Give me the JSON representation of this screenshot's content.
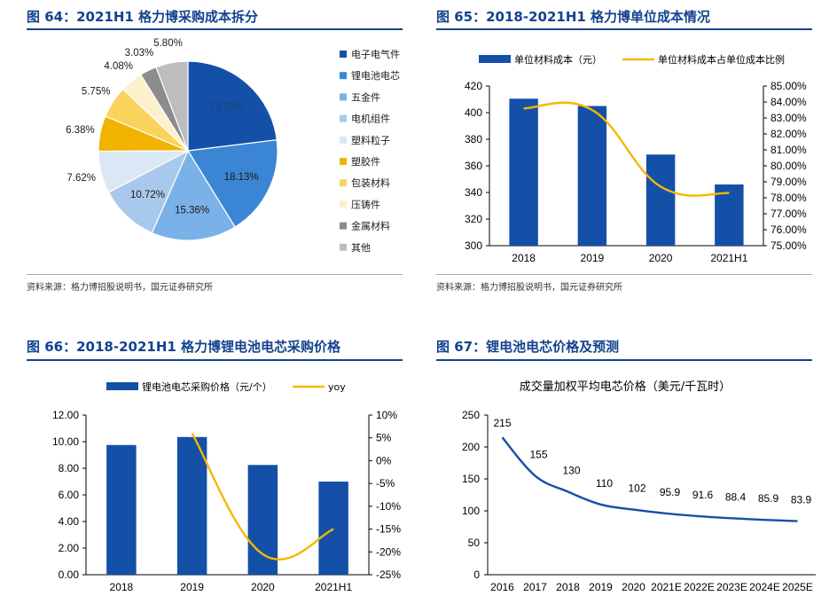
{
  "panels": {
    "p64": {
      "title": "图 64：2021H1 格力博采购成本拆分",
      "source": "资料来源：格力博招股说明书，国元证券研究所"
    },
    "p65": {
      "title": "图 65：2018-2021H1 格力博单位成本情况",
      "source": "资料来源：格力博招股说明书，国元证券研究所"
    },
    "p66": {
      "title": "图 66：2018-2021H1 格力博锂电池电芯采购价格"
    },
    "p67": {
      "title": "图 67：锂电池电芯价格及预测"
    }
  },
  "chart_data": [
    {
      "id": "fig64",
      "type": "pie",
      "slices": [
        {
          "label": "电子电气件",
          "value": 23.03,
          "display": "23.03%",
          "color": "#1450a8"
        },
        {
          "label": "锂电池电芯",
          "value": 18.13,
          "display": "18.13%",
          "color": "#3a86d4"
        },
        {
          "label": "五金件",
          "value": 15.36,
          "display": "15.36%",
          "color": "#7ab1e8"
        },
        {
          "label": "电机组件",
          "value": 10.72,
          "display": "10.72%",
          "color": "#a9c9ec"
        },
        {
          "label": "塑料粒子",
          "value": 7.62,
          "display": "7.62%",
          "color": "#dae8f6"
        },
        {
          "label": "塑胶件",
          "value": 6.38,
          "display": "6.38%",
          "color": "#f0b400"
        },
        {
          "label": "包装材料",
          "value": 5.75,
          "display": "5.75%",
          "color": "#fad35c"
        },
        {
          "label": "压铸件",
          "value": 4.08,
          "display": "4.08%",
          "color": "#fdf0cc"
        },
        {
          "label": "金属材料",
          "value": 3.03,
          "display": "3.03%",
          "color": "#8c8c8c"
        },
        {
          "label": "其他",
          "value": 5.8,
          "display": "5.80%",
          "color": "#bdbdbd"
        }
      ],
      "legend_position": "right"
    },
    {
      "id": "fig65",
      "type": "bar",
      "categories": [
        "2018",
        "2019",
        "2020",
        "2021H1"
      ],
      "series": [
        {
          "name": "单位材料成本（元）",
          "type": "bar",
          "axis": "left",
          "values": [
            410.5,
            405,
            368.5,
            346
          ],
          "color": "#1450a8"
        },
        {
          "name": "单位材料成本占单位成本比例",
          "type": "line",
          "axis": "right",
          "values": [
            83.6,
            83.5,
            78.7,
            78.3
          ],
          "color": "#f5b800"
        }
      ],
      "ylim": [
        300,
        420
      ],
      "yticks": [
        "300",
        "320",
        "340",
        "360",
        "380",
        "400",
        "420"
      ],
      "y2lim": [
        75,
        85
      ],
      "y2ticks": [
        "75.00%",
        "76.00%",
        "77.00%",
        "78.00%",
        "79.00%",
        "80.00%",
        "81.00%",
        "82.00%",
        "83.00%",
        "84.00%",
        "85.00%"
      ],
      "legend_position": "top"
    },
    {
      "id": "fig66",
      "type": "bar",
      "categories": [
        "2018",
        "2019",
        "2020",
        "2021H1"
      ],
      "series": [
        {
          "name": "锂电池电芯采购价格（元/个）",
          "type": "bar",
          "axis": "left",
          "values": [
            9.75,
            10.35,
            8.25,
            7.0
          ],
          "color": "#1450a8"
        },
        {
          "name": "yoy",
          "type": "line",
          "axis": "right",
          "values": [
            null,
            6.0,
            -20.5,
            -15.0
          ],
          "color": "#f5b800"
        }
      ],
      "ylim": [
        0,
        12
      ],
      "yticks": [
        "0.00",
        "2.00",
        "4.00",
        "6.00",
        "8.00",
        "10.00",
        "12.00"
      ],
      "y2lim": [
        -25,
        10
      ],
      "y2ticks": [
        "-25%",
        "-20%",
        "-15%",
        "-10%",
        "-5%",
        "0%",
        "5%",
        "10%"
      ],
      "legend_position": "top"
    },
    {
      "id": "fig67",
      "type": "line",
      "title": "成交量加权平均电芯价格（美元/千瓦时）",
      "x": [
        "2016",
        "2017",
        "2018",
        "2019",
        "2020",
        "2021E",
        "2022E",
        "2023E",
        "2024E",
        "2025E"
      ],
      "series": [
        {
          "values": [
            215,
            155,
            130,
            110,
            102,
            95.9,
            91.6,
            88.4,
            85.9,
            83.9
          ],
          "labels": [
            "215",
            "155",
            "130",
            "110",
            "102",
            "95.9",
            "91.6",
            "88.4",
            "85.9",
            "83.9"
          ],
          "color": "#1450a8"
        }
      ],
      "ylim": [
        0,
        250
      ],
      "yticks": [
        "0",
        "50",
        "100",
        "150",
        "200",
        "250"
      ]
    }
  ]
}
